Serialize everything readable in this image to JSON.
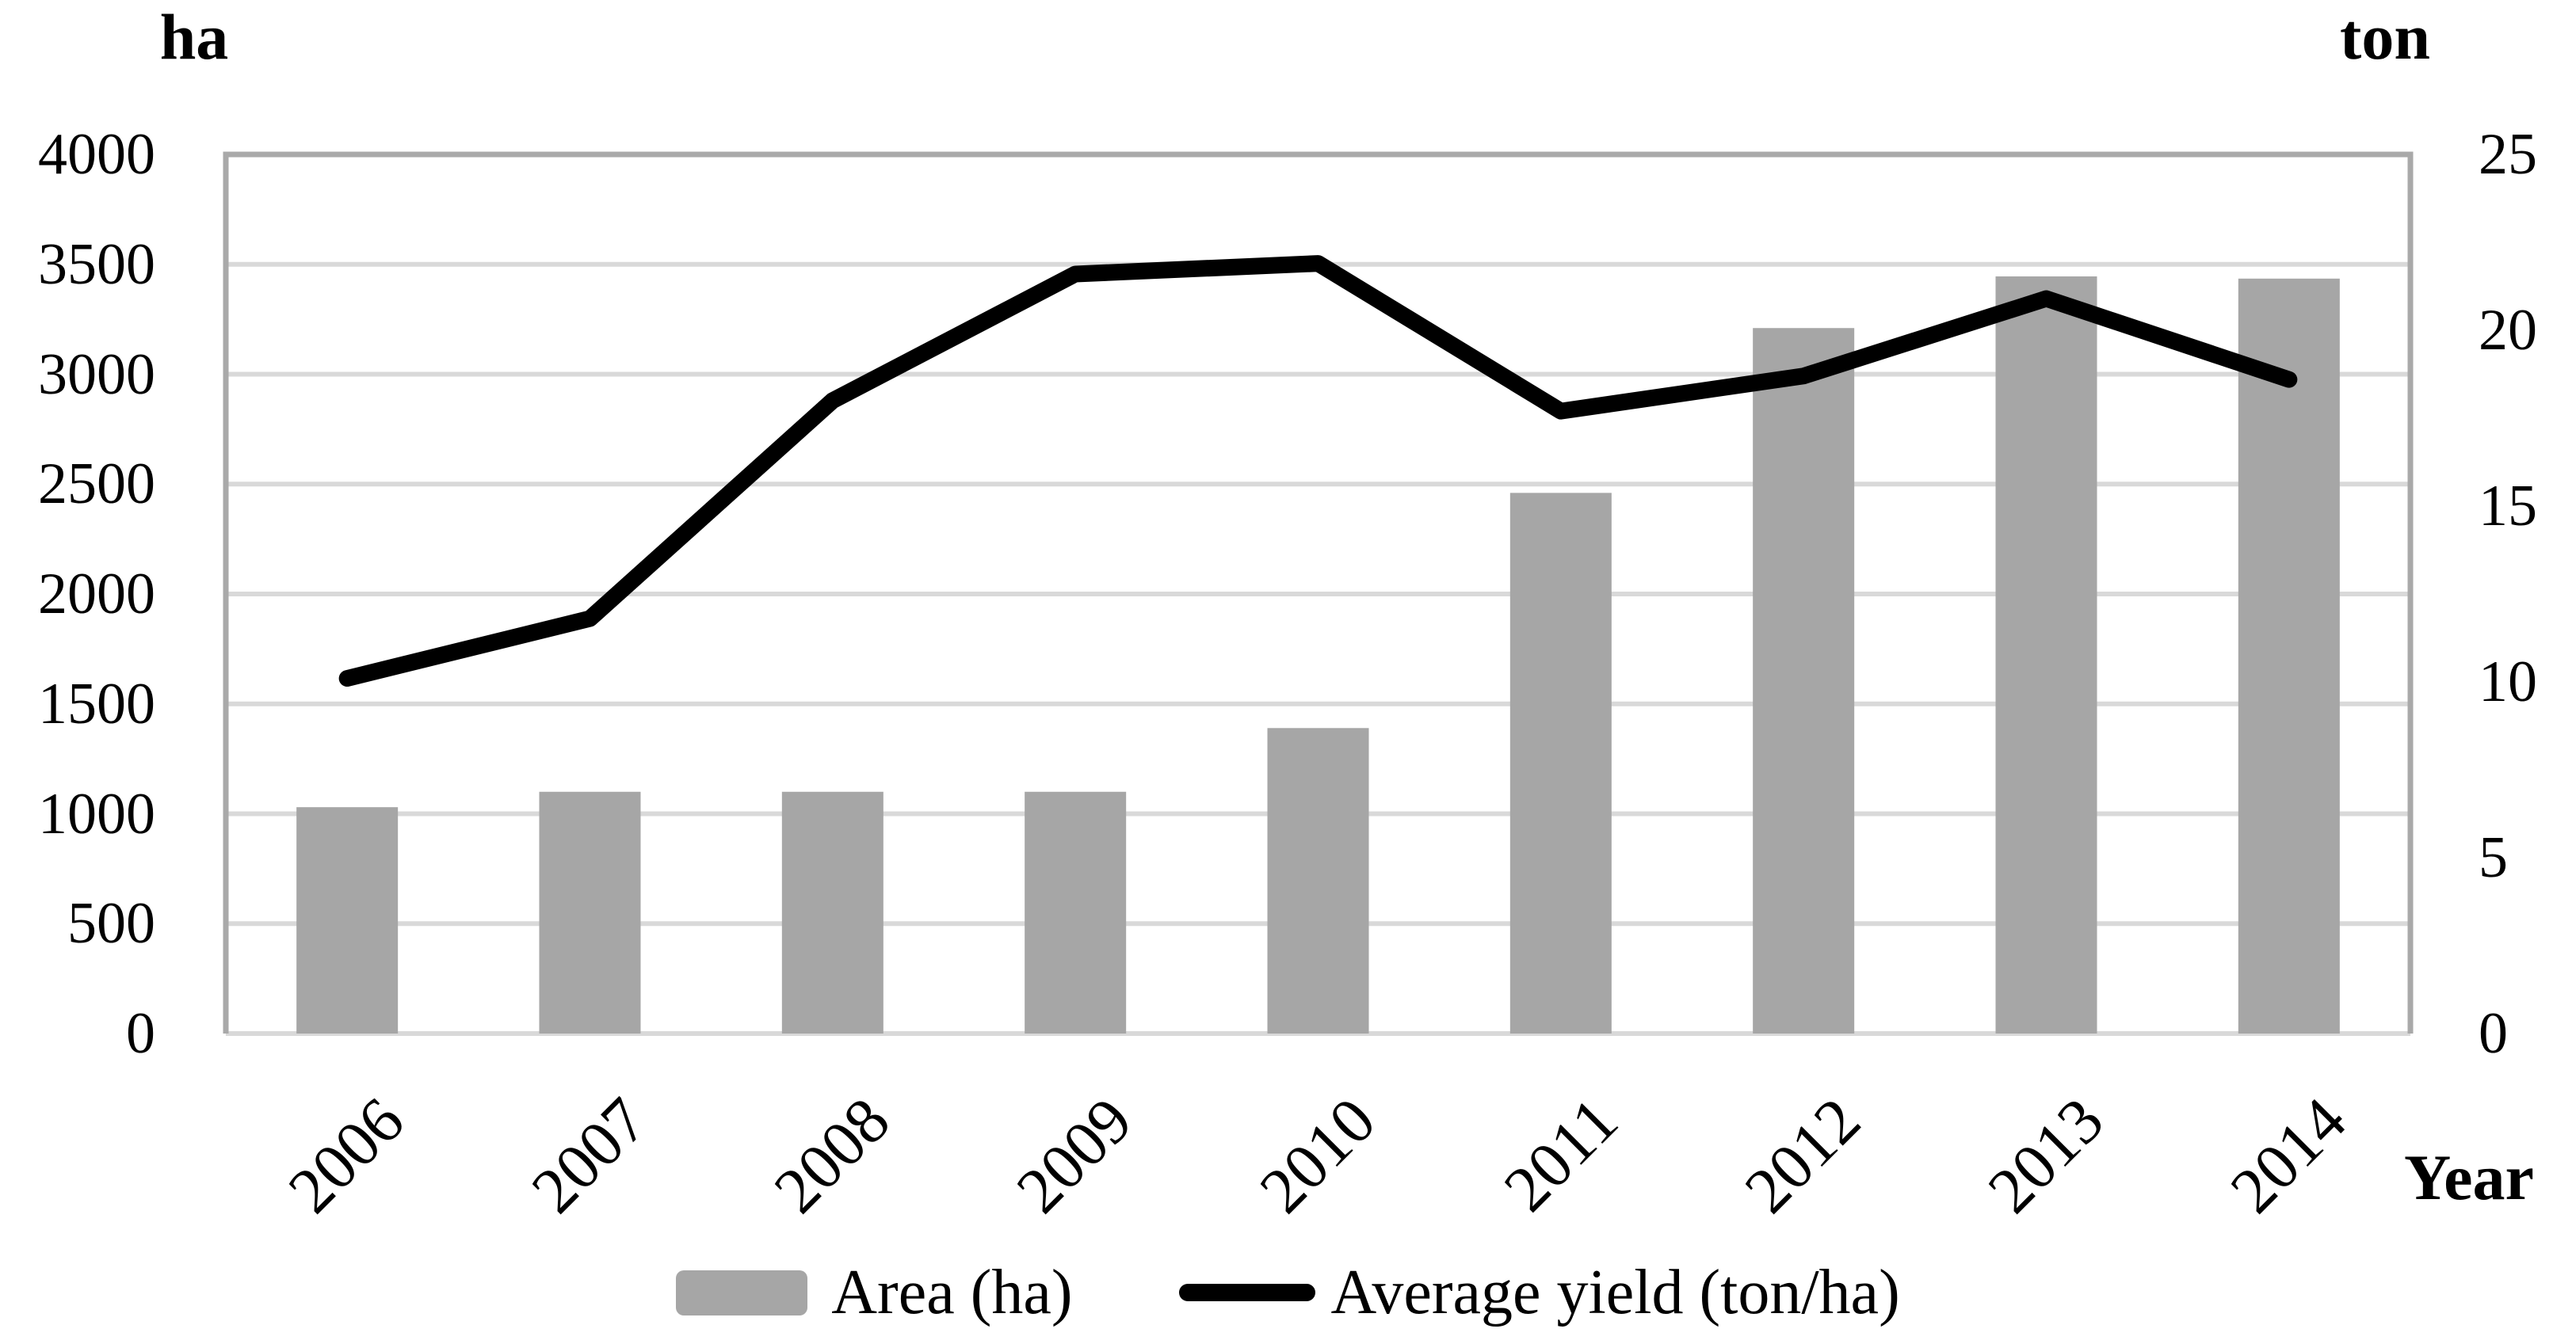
{
  "chart_data": {
    "type": "bar",
    "subtype": "bar-line-combo",
    "title": "",
    "categories": [
      "2006",
      "2007",
      "2008",
      "2009",
      "2010",
      "2011",
      "2012",
      "2013",
      "2014"
    ],
    "series": [
      {
        "name": "Area (ha)",
        "type": "bar",
        "axis": "left",
        "color": "#a6a6a6",
        "values": [
          1030,
          1100,
          1100,
          1100,
          1390,
          2460,
          3210,
          3445,
          3435
        ]
      },
      {
        "name": "Average yield (ton/ha)",
        "type": "line",
        "axis": "right",
        "color": "#000000",
        "values": [
          10.1,
          11.8,
          18.0,
          21.6,
          21.9,
          17.7,
          18.7,
          20.9,
          18.6
        ]
      }
    ],
    "left_axis": {
      "title": "ha",
      "min": 0,
      "max": 4000,
      "ticks": [
        "4000",
        "3500",
        "3000",
        "2500",
        "2000",
        "1500",
        "1000",
        "500",
        "0"
      ]
    },
    "right_axis": {
      "title": "ton",
      "min": 0,
      "max": 25,
      "ticks": [
        "25",
        "20",
        "15",
        "10",
        "5",
        "0"
      ]
    },
    "x_axis": {
      "title": "Year"
    },
    "legend": [
      "Area (ha)",
      "Average yield (ton/ha)"
    ],
    "grid": true,
    "gridline_color": "#d9d9d9",
    "border_color": "#a9a9a9"
  }
}
